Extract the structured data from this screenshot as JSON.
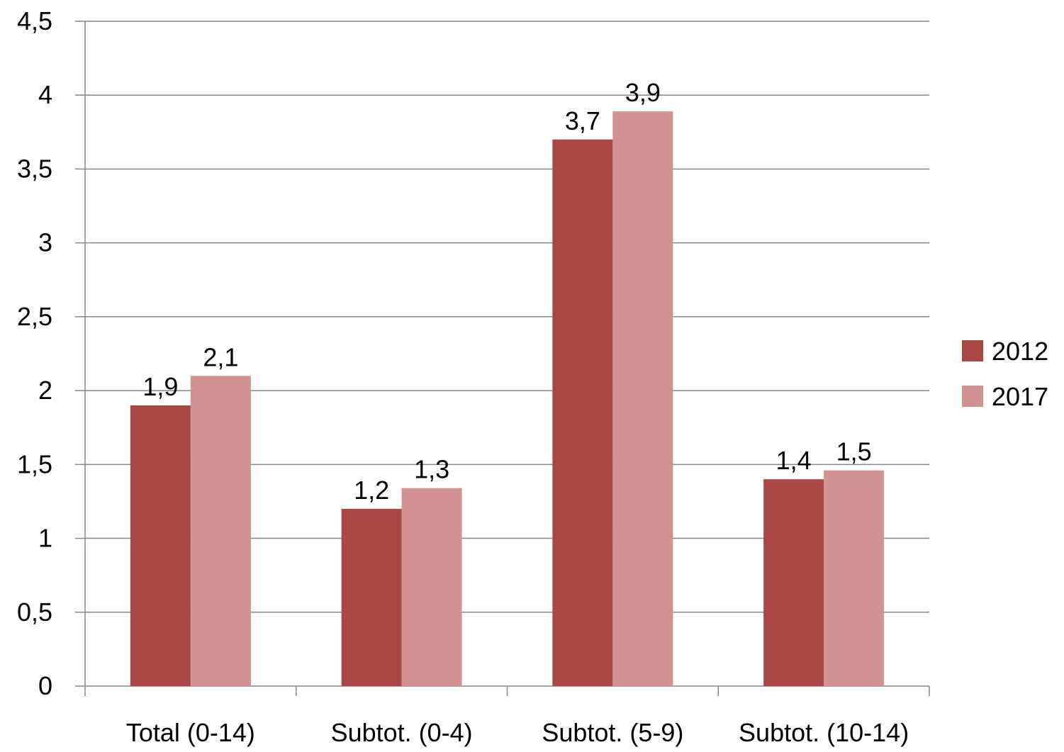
{
  "chart_data": {
    "type": "bar",
    "title": "",
    "xlabel": "",
    "ylabel": "",
    "categories": [
      "Total (0-14)",
      "Subtot. (0-4)",
      "Subtot. (5-9)",
      "Subtot. (10-14)"
    ],
    "series": [
      {
        "name": "2012",
        "color": "#A94744",
        "values": [
          1.9,
          1.2,
          3.7,
          1.4
        ],
        "labels": [
          "1,9",
          "1,2",
          "3,7",
          "1,4"
        ]
      },
      {
        "name": "2017",
        "color": "#D39292",
        "values": [
          2.1,
          1.34,
          3.89,
          1.46
        ],
        "labels": [
          "2,1",
          "1,3",
          "3,9",
          "1,5"
        ]
      }
    ],
    "ylim": [
      0,
      4.5
    ],
    "yticks": [
      0,
      0.5,
      1,
      1.5,
      2,
      2.5,
      3,
      3.5,
      4,
      4.5
    ],
    "ytick_labels": [
      "0",
      "0,5",
      "1",
      "1,5",
      "2",
      "2,5",
      "3",
      "3,5",
      "4",
      "4,5"
    ],
    "grid": true,
    "gridline_color": "#868686",
    "legend_position": "right"
  }
}
